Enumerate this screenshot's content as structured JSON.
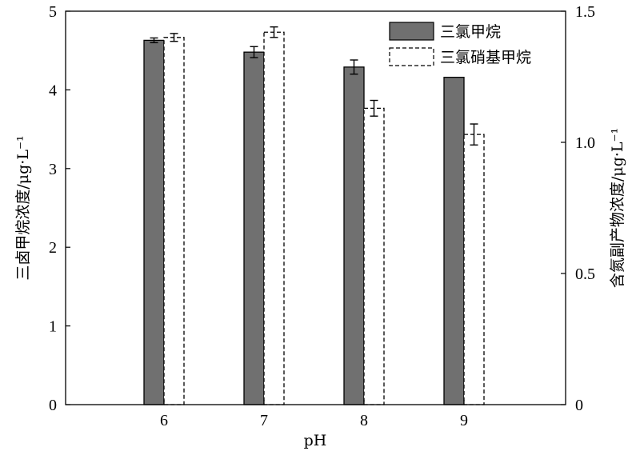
{
  "chart_data": {
    "type": "bar",
    "categories": [
      "6",
      "7",
      "8",
      "9"
    ],
    "xlabel": "pH",
    "ylabel_left": "三卤甲烷浓度/μg·L⁻¹",
    "ylabel_right": "含氮副产物浓度/μg·L⁻¹",
    "ylim_left": [
      0,
      5
    ],
    "ylim_right": [
      0,
      1.5
    ],
    "yticks_left": [
      "0",
      "1",
      "2",
      "3",
      "4",
      "5"
    ],
    "yticks_right": [
      "0",
      "0.5",
      "1.0",
      "1.5"
    ],
    "grid": false,
    "legend_position": "top-right",
    "series": [
      {
        "name": "三氯甲烷",
        "axis": "left",
        "style": "filled",
        "color": "#707070",
        "values": [
          4.63,
          4.48,
          4.29,
          4.16
        ],
        "errors": [
          0.03,
          0.07,
          0.09,
          0.0
        ]
      },
      {
        "name": "三氯硝基甲烷",
        "axis": "right",
        "style": "dashed",
        "color": "#ffffff",
        "values": [
          1.4,
          1.42,
          1.13,
          1.03
        ],
        "errors": [
          0.015,
          0.02,
          0.03,
          0.04
        ]
      }
    ]
  }
}
